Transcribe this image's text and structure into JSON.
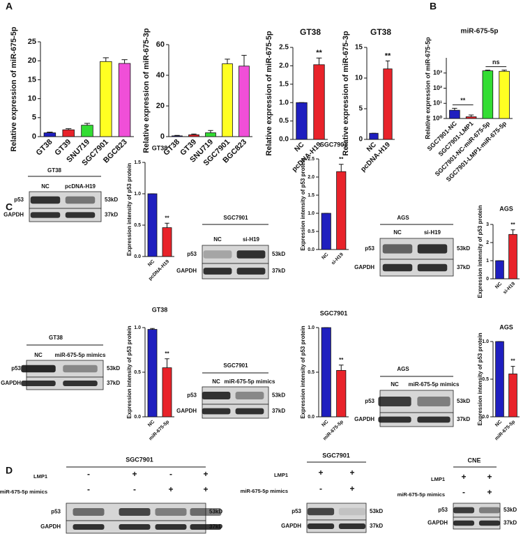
{
  "panels": [
    "A",
    "B",
    "C",
    "D"
  ],
  "chart_data": [
    {
      "type": "bar",
      "ylabel": "Relative expression of miR-675-5p",
      "categories": [
        "GT38",
        "GT39",
        "SNU719",
        "SGC7901",
        "BGC823"
      ],
      "values": [
        1.0,
        1.8,
        3.0,
        19.8,
        19.3
      ],
      "errors": [
        0.2,
        0.3,
        0.5,
        1.0,
        1.0
      ],
      "colors": [
        "#1f1fbf",
        "#e8232a",
        "#33dd33",
        "#ffff22",
        "#f04fd8"
      ],
      "ylim": [
        0,
        25
      ],
      "yticks": [
        0,
        5,
        10,
        15,
        20,
        25
      ]
    },
    {
      "type": "bar",
      "ylabel": "Relative expression of miR-675-3p",
      "categories": [
        "GT38",
        "GT39",
        "SNU719",
        "SGC7901",
        "BGC823"
      ],
      "values": [
        0.5,
        1.2,
        2.5,
        47.5,
        46
      ],
      "errors": [
        0.3,
        0.5,
        1.5,
        3,
        7
      ],
      "colors": [
        "#1f1fbf",
        "#e8232a",
        "#33dd33",
        "#ffff22",
        "#f04fd8"
      ],
      "ylim": [
        0,
        60
      ],
      "yticks": [
        0,
        20,
        40,
        60
      ]
    },
    {
      "type": "bar",
      "title": "GT38",
      "ylabel": "Relative expression of miR-675-5p",
      "categories": [
        "NC",
        "pcDNA-H19"
      ],
      "values": [
        1.0,
        2.03
      ],
      "errors": [
        0,
        0.18
      ],
      "colors": [
        "#1f1fbf",
        "#e8232a"
      ],
      "ylim": [
        0,
        2.5
      ],
      "yticks": [
        {
          "value": 0,
          "label": "0.0"
        },
        0.5,
        {
          "value": 1,
          "label": "1.0"
        },
        1.5,
        {
          "value": 2,
          "label": "2.0"
        },
        2.5
      ],
      "annotations": [
        "**"
      ]
    },
    {
      "type": "bar",
      "title": "GT38",
      "ylabel": "Relative expression of miR-675-3p",
      "categories": [
        "NC",
        "pcDNA-H19"
      ],
      "values": [
        1.0,
        11.5
      ],
      "errors": [
        0,
        1.3
      ],
      "colors": [
        "#1f1fbf",
        "#e8232a"
      ],
      "ylim": [
        0,
        15
      ],
      "yticks": [
        0,
        5,
        10,
        15
      ],
      "annotations": [
        "**"
      ]
    },
    {
      "type": "bar",
      "title": "miR-675-5p",
      "ylabel": "Relative expression of miR-675-5p",
      "log": true,
      "categories": [
        "SGC7901-NC",
        "SGC7901-LMP1",
        "SGC7901-NC-miR-675-5p",
        "SGC7901-LMP1-miR-675-5p"
      ],
      "values": [
        3.5,
        1.3,
        1400,
        1300
      ],
      "errors": [
        1.2,
        0.4,
        150,
        250
      ],
      "colors": [
        "#1f1fbf",
        "#e8232a",
        "#33dd33",
        "#ffff22"
      ],
      "ylim": [
        1,
        10000
      ],
      "yticks": [
        {
          "value": 1,
          "label": "10⁰"
        },
        {
          "value": 10,
          "label": "10¹"
        },
        {
          "value": 100,
          "label": "10²"
        },
        {
          "value": 1000,
          "label": "10³"
        }
      ],
      "annotations": [
        "**",
        "ns"
      ]
    },
    {
      "type": "bar",
      "title": "GT38",
      "ylabel": "Expression intensity of p53 protein",
      "categories": [
        "NC",
        "pcDNA-H19"
      ],
      "values": [
        1.0,
        0.46
      ],
      "errors": [
        0,
        0.07
      ],
      "colors": [
        "#1f1fbf",
        "#e8232a"
      ],
      "ylim": [
        0,
        1.5
      ],
      "yticks": [
        {
          "value": 0,
          "label": "0.0"
        },
        0.5,
        {
          "value": 1,
          "label": "1.0"
        },
        1.5
      ],
      "annotations": [
        "**"
      ]
    },
    {
      "type": "bar",
      "title": "SGC7901",
      "ylabel": "Expression intensity of p53 protein",
      "categories": [
        "NC",
        "si-H19"
      ],
      "values": [
        1.0,
        2.15
      ],
      "errors": [
        0,
        0.2
      ],
      "colors": [
        "#1f1fbf",
        "#e8232a"
      ],
      "ylim": [
        0,
        2.5
      ],
      "yticks": [
        {
          "value": 0,
          "label": "0.0"
        },
        0.5,
        {
          "value": 1,
          "label": "1.0"
        },
        1.5,
        {
          "value": 2,
          "label": "2.0"
        },
        2.5
      ],
      "annotations": [
        "**"
      ]
    },
    {
      "type": "bar",
      "title": "AGS",
      "ylabel": "Expression intensity of p53 protein",
      "categories": [
        "NC",
        "si-H19"
      ],
      "values": [
        1.0,
        2.45
      ],
      "errors": [
        0,
        0.25
      ],
      "colors": [
        "#1f1fbf",
        "#e8232a"
      ],
      "ylim": [
        0,
        3
      ],
      "yticks": [
        0,
        1,
        2,
        3
      ],
      "annotations": [
        "**"
      ]
    },
    {
      "type": "bar",
      "title": "GT38",
      "ylabel": "Expression intensity of p53 protein",
      "categories": [
        "NC",
        "miR-675-5p"
      ],
      "values": [
        0.98,
        0.55
      ],
      "errors": [
        0.01,
        0.1
      ],
      "colors": [
        "#1f1fbf",
        "#e8232a"
      ],
      "ylim": [
        0,
        1
      ],
      "yticks": [
        {
          "value": 0,
          "label": "0.0"
        },
        0.5,
        {
          "value": 1,
          "label": "1.0"
        }
      ],
      "annotations": [
        "**"
      ]
    },
    {
      "type": "bar",
      "title": "SGC7901",
      "ylabel": "Expression intensity of p53 protein",
      "categories": [
        "NC",
        "miR-675-5p"
      ],
      "values": [
        1.0,
        0.52
      ],
      "errors": [
        0,
        0.06
      ],
      "colors": [
        "#1f1fbf",
        "#e8232a"
      ],
      "ylim": [
        0,
        1
      ],
      "yticks": [
        {
          "value": 0,
          "label": "0.0"
        },
        0.5,
        {
          "value": 1,
          "label": "1.0"
        }
      ],
      "annotations": [
        "**"
      ]
    },
    {
      "type": "bar",
      "title": "AGS",
      "ylabel": "Expression intensity of p53 protein",
      "categories": [
        "NC",
        "miR-675-5p"
      ],
      "values": [
        1.0,
        0.57
      ],
      "errors": [
        0,
        0.1
      ],
      "colors": [
        "#1f1fbf",
        "#e8232a"
      ],
      "ylim": [
        0,
        1
      ],
      "yticks": [
        {
          "value": 0,
          "label": "0.0"
        },
        0.5,
        {
          "value": 1,
          "label": "1.0"
        }
      ],
      "annotations": [
        "**"
      ]
    }
  ],
  "blots": [
    {
      "title": "GT38",
      "lanes": [
        "NC",
        "pcDNA-H19"
      ],
      "rows": [
        "p53",
        "GAPDH"
      ],
      "sizes": [
        "53kD",
        "37kD"
      ]
    },
    {
      "title": "SGC7901",
      "lanes": [
        "NC",
        "si-H19"
      ],
      "rows": [
        "p53",
        "GAPDH"
      ],
      "sizes": [
        "53kD",
        "37kD"
      ]
    },
    {
      "title": "AGS",
      "lanes": [
        "NC",
        "si-H19"
      ],
      "rows": [
        "p53",
        "GAPDH"
      ],
      "sizes": [
        "53kD",
        "37kD"
      ]
    },
    {
      "title": "GT38",
      "lanes": [
        "NC",
        "miR-675-5p mimics"
      ],
      "rows": [
        "p53",
        "GAPDH"
      ],
      "sizes": [
        "53kD",
        "37kD"
      ]
    },
    {
      "title": "SGC7901",
      "lanes": [
        "NC",
        "miR-675-5p mimics"
      ],
      "rows": [
        "p53",
        "GAPDH"
      ],
      "sizes": [
        "53kD",
        "37kD"
      ]
    },
    {
      "title": "AGS",
      "lanes": [
        "NC",
        "miR-675-5p mimics"
      ],
      "rows": [
        "p53",
        "GAPDH"
      ],
      "sizes": [
        "53kD",
        "37kD"
      ]
    },
    {
      "title": "SGC7901",
      "conditions": [
        {
          "name": "LMP1",
          "signs": [
            "-",
            "+",
            "-",
            "+"
          ]
        },
        {
          "name": "miR-675-5p mimics",
          "signs": [
            "-",
            "-",
            "+",
            "+"
          ]
        }
      ],
      "rows": [
        "p53",
        "GAPDH"
      ],
      "sizes": [
        "53kD",
        "37kD"
      ]
    },
    {
      "title": "SGC7901",
      "conditions": [
        {
          "name": "LMP1",
          "signs": [
            "+",
            "+"
          ]
        },
        {
          "name": "miR-675-5p mimics",
          "signs": [
            "-",
            "+"
          ]
        }
      ],
      "rows": [
        "p53",
        "GAPDH"
      ],
      "sizes": [
        "53kD",
        "37kD"
      ]
    },
    {
      "title": "CNE",
      "conditions": [
        {
          "name": "LMP1",
          "signs": [
            "+",
            "+"
          ]
        },
        {
          "name": "miR-675-5p mimics",
          "signs": [
            "-",
            "+"
          ]
        }
      ],
      "rows": [
        "p53",
        "GAPDH"
      ],
      "sizes": [
        "53kD",
        "37kD"
      ]
    }
  ]
}
